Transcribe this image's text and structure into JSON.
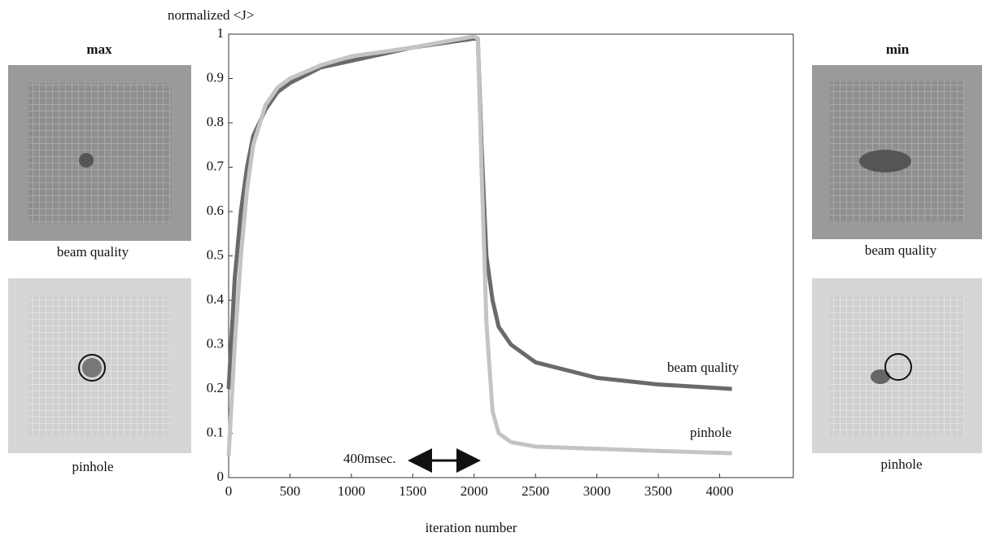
{
  "chart_data": {
    "type": "line",
    "y_label": "normalized <J>",
    "x_label": "iteration number",
    "annotation": "400msec.",
    "x": [
      0,
      50,
      100,
      150,
      200,
      300,
      400,
      500,
      750,
      1000,
      1500,
      2000,
      2030,
      2060,
      2100,
      2150,
      2200,
      2300,
      2500,
      3000,
      3500,
      4100
    ],
    "series": [
      {
        "name": "beam quality",
        "color": "#6a6a6a",
        "values": [
          0.2,
          0.45,
          0.6,
          0.7,
          0.77,
          0.83,
          0.87,
          0.89,
          0.925,
          0.94,
          0.97,
          0.99,
          0.99,
          0.75,
          0.5,
          0.4,
          0.34,
          0.3,
          0.26,
          0.225,
          0.21,
          0.2
        ]
      },
      {
        "name": "pinhole",
        "color": "#c4c4c4",
        "values": [
          0.05,
          0.3,
          0.5,
          0.65,
          0.75,
          0.84,
          0.88,
          0.9,
          0.93,
          0.95,
          0.97,
          0.995,
          0.99,
          0.7,
          0.35,
          0.15,
          0.1,
          0.08,
          0.07,
          0.065,
          0.06,
          0.055
        ]
      }
    ],
    "xlim": [
      0,
      4600
    ],
    "ylim": [
      0,
      1
    ],
    "xticks": [
      0,
      500,
      1000,
      1500,
      2000,
      2500,
      3000,
      3500,
      4000
    ],
    "yticks": [
      0,
      0.1,
      0.2,
      0.3,
      0.4,
      0.5,
      0.6,
      0.7,
      0.8,
      0.9,
      1
    ],
    "grid": false
  },
  "images": {
    "left": {
      "title": "max",
      "captions": [
        "beam quality",
        "pinhole"
      ]
    },
    "right": {
      "title": "min",
      "captions": [
        "beam quality",
        "pinhole"
      ]
    }
  }
}
